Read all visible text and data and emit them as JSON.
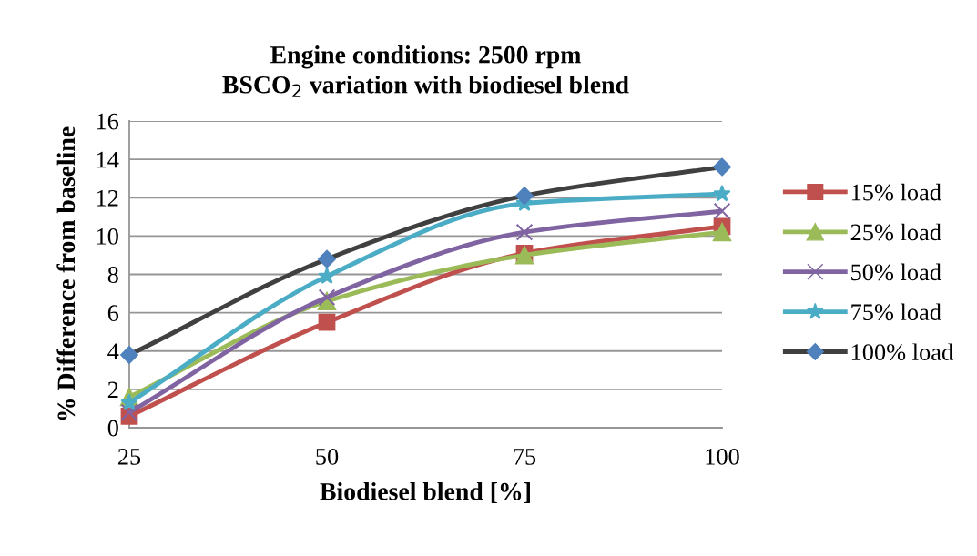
{
  "chart_data": {
    "type": "line",
    "title": "Engine conditions: 2500 rpm\nBSCO$_{2}$ variation with biodiesel blend",
    "xlabel": "Biodiesel blend [%]",
    "ylabel": "% Difference from baseline",
    "x": [
      25,
      50,
      75,
      100
    ],
    "xlim": [
      25,
      100
    ],
    "xticks": [
      25,
      50,
      75,
      100
    ],
    "ylim": [
      0,
      16
    ],
    "yticks": [
      0,
      2,
      4,
      6,
      8,
      10,
      12,
      14,
      16
    ],
    "grid": "y",
    "legend": "right",
    "line_style": "solid",
    "series": [
      {
        "name": "15% load",
        "color": "#c0504d",
        "marker": "square",
        "values": [
          0.6,
          5.5,
          9.1,
          10.5
        ]
      },
      {
        "name": "25% load",
        "color": "#9bbb59",
        "marker": "triangle",
        "values": [
          1.6,
          6.6,
          9.0,
          10.2
        ]
      },
      {
        "name": "50% load",
        "color": "#8064a2",
        "marker": "cross",
        "values": [
          0.8,
          6.8,
          10.2,
          11.3
        ]
      },
      {
        "name": "75% load",
        "color": "#4bacc6",
        "marker": "star",
        "values": [
          1.3,
          7.9,
          11.7,
          12.2
        ]
      },
      {
        "name": "100% load",
        "color": "#404040",
        "marker": "diamond",
        "values": [
          3.8,
          8.8,
          12.1,
          13.6
        ]
      }
    ]
  }
}
